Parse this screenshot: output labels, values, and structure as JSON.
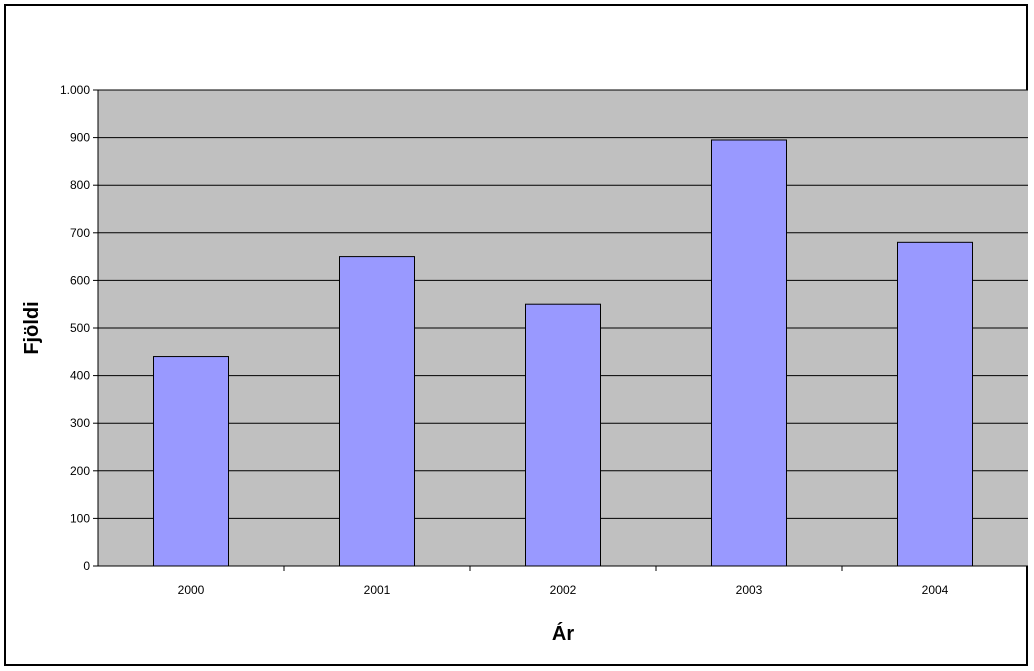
{
  "chart_data": {
    "type": "bar",
    "categories": [
      "2000",
      "2001",
      "2002",
      "2003",
      "2004"
    ],
    "values": [
      440,
      650,
      550,
      895,
      680
    ],
    "title": "",
    "xlabel": "Ár",
    "ylabel": "Fjöldi",
    "ylim": [
      0,
      1000
    ],
    "yticks": [
      0,
      100,
      200,
      300,
      400,
      500,
      600,
      700,
      800,
      900,
      1000
    ],
    "ytick_labels": [
      "0",
      "100",
      "200",
      "300",
      "400",
      "500",
      "600",
      "700",
      "800",
      "900",
      "1.000"
    ],
    "grid": true,
    "legend": "none",
    "colors": {
      "bar": "#9999ff",
      "plot_background": "#c0c0c0",
      "gridline": "#000000"
    }
  }
}
